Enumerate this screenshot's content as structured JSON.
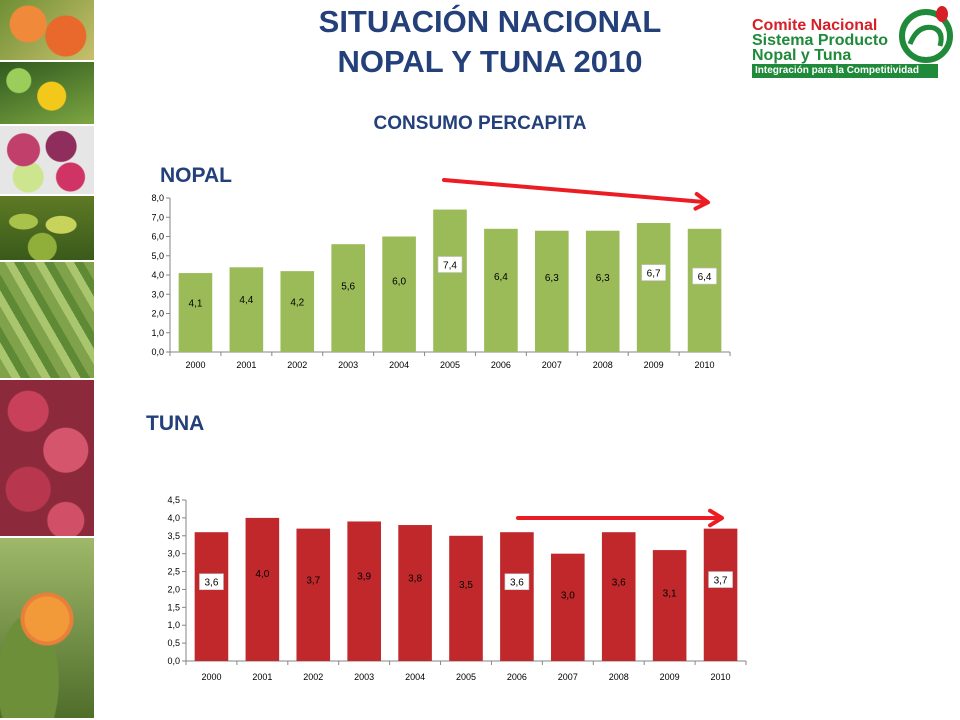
{
  "header": {
    "title_line1": "SITUACIÓN NACIONAL",
    "title_line2": "NOPAL Y TUNA 2010",
    "subtitle": "CONSUMO PERCAPITA"
  },
  "logo": {
    "line1": "Comite Nacional",
    "line2": "Sistema Producto",
    "line3": "Nopal y Tuna",
    "tagline": "Integración para la Competitividad"
  },
  "photos": [
    "prickly-pears-orange",
    "cactus-flower-yellow",
    "cut-tunas",
    "green-tunas",
    "nopal-field",
    "red-tunas",
    "nopal-flower-orange"
  ],
  "chart_data": [
    {
      "id": "nopal",
      "label": "NOPAL",
      "type": "bar",
      "categories": [
        "2000",
        "2001",
        "2002",
        "2003",
        "2004",
        "2005",
        "2006",
        "2007",
        "2008",
        "2009",
        "2010"
      ],
      "values": [
        4.1,
        4.4,
        4.2,
        5.6,
        6.0,
        7.4,
        6.4,
        6.3,
        6.3,
        6.7,
        6.4
      ],
      "value_labels": [
        "4,1",
        "4,4",
        "4,2",
        "5,6",
        "6,0",
        "7,4",
        "6,4",
        "6,3",
        "6,3",
        "6,7",
        "6,4"
      ],
      "boxed_labels": [
        5,
        9,
        10
      ],
      "ylim": [
        0,
        8
      ],
      "yticks": [
        "0,0",
        "1,0",
        "2,0",
        "3,0",
        "4,0",
        "5,0",
        "6,0",
        "7,0",
        "8,0"
      ],
      "bar_color": "#9bbb59",
      "trend_arrow": "decreasing",
      "arrow_color": "#ec1c24"
    },
    {
      "id": "tuna",
      "label": "TUNA",
      "type": "bar",
      "categories": [
        "2000",
        "2001",
        "2002",
        "2003",
        "2004",
        "2005",
        "2006",
        "2007",
        "2008",
        "2009",
        "2010"
      ],
      "values": [
        3.6,
        4.0,
        3.7,
        3.9,
        3.8,
        3.5,
        3.6,
        3.0,
        3.6,
        3.1,
        3.7
      ],
      "value_labels": [
        "3,6",
        "4,0",
        "3,7",
        "3,9",
        "3,8",
        "3,5",
        "3,6",
        "3,0",
        "3,6",
        "3,1",
        "3,7"
      ],
      "boxed_labels": [
        0,
        6,
        10
      ],
      "ylim": [
        0,
        4.5
      ],
      "yticks": [
        "0,0",
        "0,5",
        "1,0",
        "1,5",
        "2,0",
        "2,5",
        "3,0",
        "3,5",
        "4,0",
        "4,5"
      ],
      "bar_color": "#c0282c",
      "trend_arrow": "flat",
      "arrow_color": "#ec1c24"
    }
  ]
}
